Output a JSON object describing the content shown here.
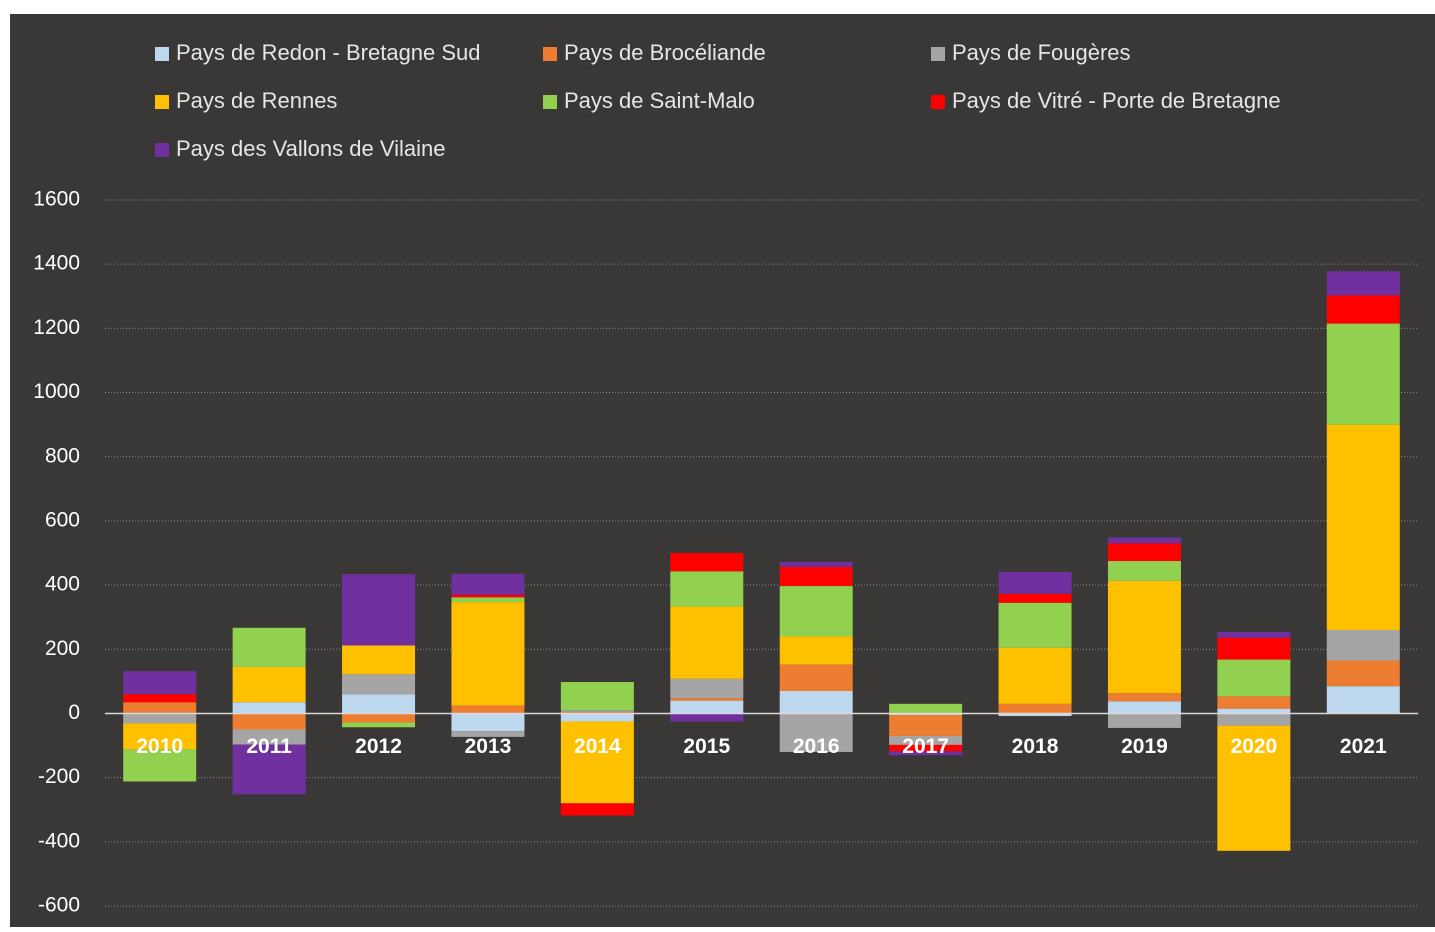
{
  "chart_data": {
    "type": "stacked_bar",
    "categories": [
      "2010",
      "2011",
      "2012",
      "2013",
      "2014",
      "2015",
      "2016",
      "2017",
      "2018",
      "2019",
      "2020",
      "2021"
    ],
    "series": [
      {
        "name": "Pays de Redon - Bretagne Sud",
        "color": "#bdd7ee",
        "values": [
          0,
          35,
          60,
          -55,
          -25,
          40,
          70,
          -5,
          -8,
          38,
          15,
          85
        ]
      },
      {
        "name": "Pays de Brocéliande",
        "color": "#ed7d31",
        "values": [
          35,
          -50,
          -28,
          25,
          5,
          8,
          82,
          -65,
          30,
          25,
          38,
          80
        ]
      },
      {
        "name": "Pays de Fougères",
        "color": "#a5a5a5",
        "values": [
          -31,
          -47,
          62,
          -18,
          5,
          60,
          -120,
          -28,
          0,
          -45,
          -38,
          95
        ]
      },
      {
        "name": "Pays de Rennes",
        "color": "#ffc000",
        "values": [
          -81,
          110,
          90,
          322,
          -255,
          225,
          88,
          0,
          175,
          350,
          -390,
          640
        ]
      },
      {
        "name": "Pays de Saint-Malo",
        "color": "#92d050",
        "values": [
          -100,
          122,
          -15,
          15,
          88,
          110,
          157,
          30,
          140,
          62,
          115,
          315
        ]
      },
      {
        "name": "Pays de Vitré - Porte de Bretagne",
        "color": "#ff0000",
        "values": [
          25,
          0,
          0,
          8,
          -38,
          57,
          60,
          -20,
          28,
          55,
          68,
          88
        ]
      },
      {
        "name": "Pays des Vallons de Vilaine",
        "color": "#7030a0",
        "values": [
          72,
          -155,
          222,
          65,
          0,
          -25,
          15,
          -12,
          68,
          18,
          18,
          75
        ]
      }
    ],
    "ylim": [
      -600,
      1600
    ],
    "yticks": [
      -600,
      -400,
      -200,
      0,
      200,
      400,
      600,
      800,
      1000,
      1200,
      1400,
      1600
    ],
    "grid": true,
    "legend": "top"
  }
}
